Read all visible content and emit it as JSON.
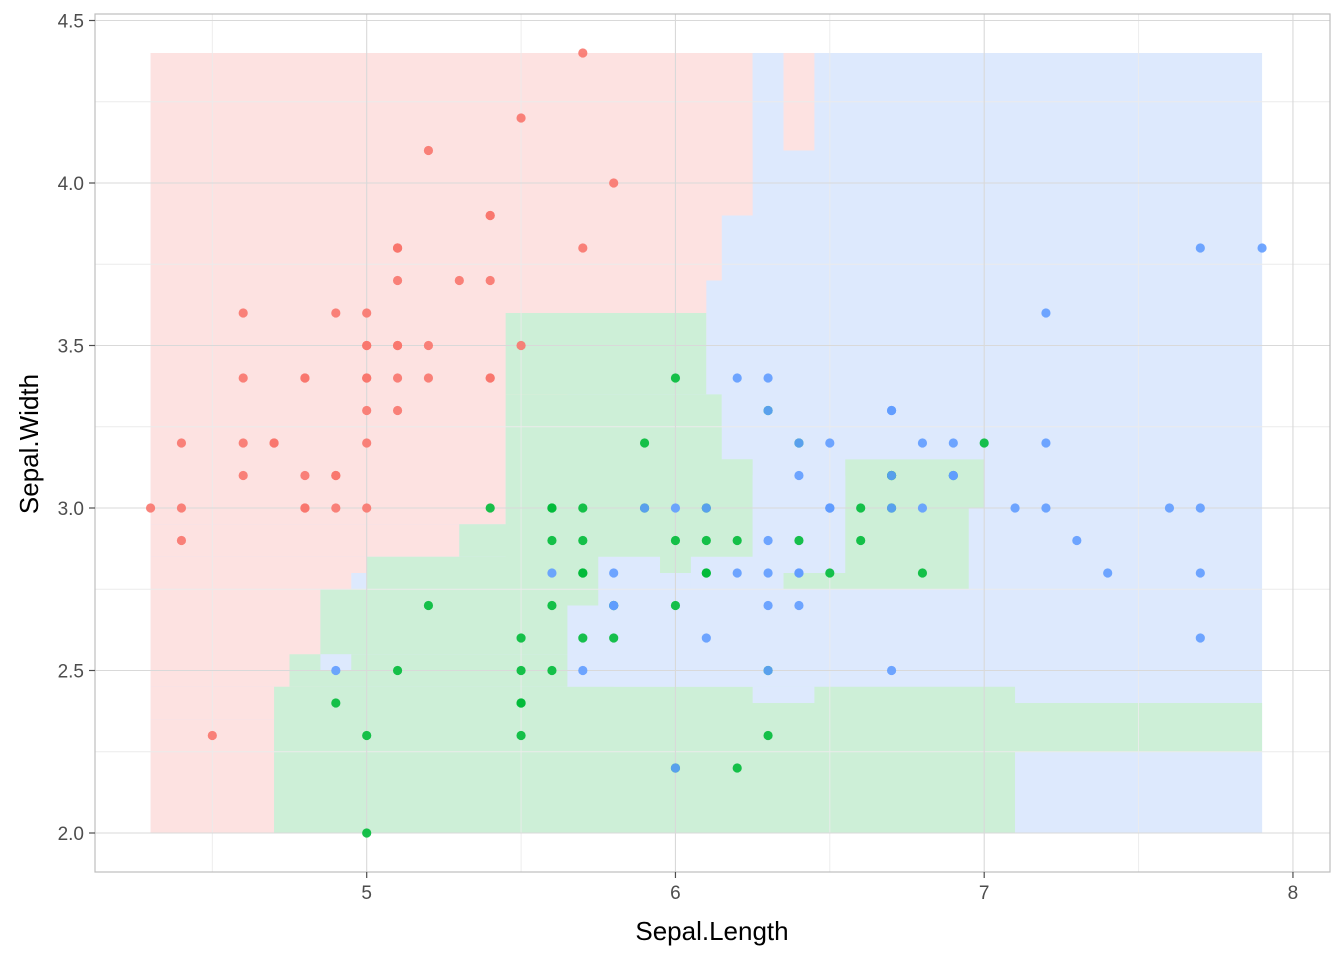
{
  "chart_data": {
    "type": "scatter",
    "title": "",
    "xlabel": "Sepal.Length",
    "ylabel": "Sepal.Width",
    "xlim": [
      4.12,
      8.12
    ],
    "ylim": [
      1.88,
      4.52
    ],
    "x_ticks": [
      5,
      6,
      7,
      8
    ],
    "x_tick_labels": [
      "5",
      "6",
      "7",
      "8"
    ],
    "y_ticks": [
      2.0,
      2.5,
      3.0,
      3.5,
      4.0,
      4.5
    ],
    "y_tick_labels": [
      "2.0",
      "2.5",
      "3.0",
      "3.5",
      "4.0",
      "4.5"
    ],
    "grid": true,
    "legend": "none",
    "colors": {
      "red_points": "#F8766D",
      "green_points": "#00BA38",
      "blue_points": "#619CFF",
      "red_region": "#FDE2E1",
      "green_region": "#CDEFD7",
      "blue_region": "#DDE9FD"
    },
    "decision_regions": [
      {
        "color": "blue_region",
        "rect": [
          4.3,
          7.9,
          2.0,
          4.4
        ]
      },
      {
        "color": "red_region",
        "rect": [
          4.3,
          6.25,
          4.1,
          4.4
        ]
      },
      {
        "color": "red_region",
        "rect": [
          6.35,
          6.45,
          4.1,
          4.4
        ]
      },
      {
        "color": "red_region",
        "rect": [
          4.3,
          6.35,
          3.9,
          4.1
        ]
      },
      {
        "color": "red_region",
        "rect": [
          4.3,
          6.15,
          3.7,
          3.9
        ]
      },
      {
        "color": "red_region",
        "rect": [
          4.3,
          6.1,
          3.5,
          3.7
        ]
      },
      {
        "color": "red_region",
        "rect": [
          4.3,
          5.85,
          3.4,
          3.5
        ]
      },
      {
        "color": "red_region",
        "rect": [
          4.3,
          5.65,
          3.3,
          3.4
        ]
      },
      {
        "color": "red_region",
        "rect": [
          4.3,
          5.45,
          2.95,
          3.3
        ]
      },
      {
        "color": "red_region",
        "rect": [
          4.3,
          5.3,
          2.85,
          2.95
        ]
      },
      {
        "color": "red_region",
        "rect": [
          4.3,
          5.0,
          2.8,
          2.85
        ]
      },
      {
        "color": "red_region",
        "rect": [
          4.3,
          4.95,
          2.75,
          2.8
        ]
      },
      {
        "color": "red_region",
        "rect": [
          4.3,
          4.85,
          2.45,
          2.75
        ]
      },
      {
        "color": "red_region",
        "rect": [
          4.3,
          4.75,
          2.35,
          2.45
        ]
      },
      {
        "color": "red_region",
        "rect": [
          4.3,
          4.7,
          2.0,
          2.35
        ]
      },
      {
        "color": "green_region",
        "rect": [
          5.45,
          6.1,
          3.35,
          3.6
        ]
      },
      {
        "color": "green_region",
        "rect": [
          5.45,
          6.15,
          3.25,
          3.35
        ]
      },
      {
        "color": "green_region",
        "rect": [
          5.45,
          6.25,
          2.8,
          3.25
        ]
      },
      {
        "color": "green_region",
        "rect": [
          5.3,
          6.25,
          2.85,
          2.95
        ]
      },
      {
        "color": "green_region",
        "rect": [
          5.0,
          5.8,
          2.75,
          2.85
        ]
      },
      {
        "color": "green_region",
        "rect": [
          4.85,
          5.8,
          2.55,
          2.75
        ]
      },
      {
        "color": "green_region",
        "rect": [
          4.75,
          5.8,
          2.45,
          2.55
        ]
      },
      {
        "color": "green_region",
        "rect": [
          4.7,
          7.1,
          2.0,
          2.45
        ]
      },
      {
        "color": "green_region",
        "rect": [
          6.55,
          7.0,
          3.0,
          3.15
        ]
      },
      {
        "color": "green_region",
        "rect": [
          6.35,
          6.95,
          2.75,
          3.0
        ]
      },
      {
        "color": "green_region",
        "rect": [
          7.0,
          7.9,
          2.25,
          2.4
        ]
      },
      {
        "color": "blue_region",
        "rect": [
          6.25,
          6.35,
          4.1,
          4.4
        ]
      },
      {
        "color": "blue_region",
        "rect": [
          6.25,
          7.9,
          3.6,
          4.1
        ]
      },
      {
        "color": "blue_region",
        "rect": [
          6.1,
          7.9,
          3.35,
          3.6
        ]
      },
      {
        "color": "blue_region",
        "rect": [
          6.15,
          7.9,
          3.15,
          3.35
        ]
      },
      {
        "color": "blue_region",
        "rect": [
          6.25,
          6.55,
          2.8,
          3.1
        ]
      },
      {
        "color": "blue_region",
        "rect": [
          5.75,
          5.95,
          2.7,
          2.85
        ]
      },
      {
        "color": "blue_region",
        "rect": [
          6.05,
          6.35,
          2.75,
          2.85
        ]
      },
      {
        "color": "blue_region",
        "rect": [
          5.65,
          6.45,
          2.45,
          2.7
        ]
      },
      {
        "color": "blue_region",
        "rect": [
          4.85,
          4.95,
          2.5,
          2.55
        ]
      },
      {
        "color": "blue_region",
        "rect": [
          6.25,
          6.45,
          2.4,
          2.45
        ]
      },
      {
        "color": "blue_region",
        "rect": [
          7.1,
          7.9,
          2.0,
          2.25
        ]
      }
    ],
    "series": [
      {
        "color": "red_points",
        "points": [
          [
            5.1,
            3.5
          ],
          [
            4.9,
            3.0
          ],
          [
            4.7,
            3.2
          ],
          [
            4.6,
            3.1
          ],
          [
            5.0,
            3.6
          ],
          [
            5.4,
            3.9
          ],
          [
            4.6,
            3.4
          ],
          [
            5.0,
            3.4
          ],
          [
            4.4,
            2.9
          ],
          [
            4.9,
            3.1
          ],
          [
            5.4,
            3.7
          ],
          [
            4.8,
            3.4
          ],
          [
            4.8,
            3.0
          ],
          [
            4.3,
            3.0
          ],
          [
            5.8,
            4.0
          ],
          [
            5.7,
            4.4
          ],
          [
            5.4,
            3.9
          ],
          [
            5.1,
            3.5
          ],
          [
            5.7,
            3.8
          ],
          [
            5.1,
            3.8
          ],
          [
            5.4,
            3.4
          ],
          [
            5.1,
            3.7
          ],
          [
            4.6,
            3.6
          ],
          [
            5.1,
            3.3
          ],
          [
            4.8,
            3.4
          ],
          [
            5.0,
            3.0
          ],
          [
            5.0,
            3.4
          ],
          [
            5.2,
            3.5
          ],
          [
            5.2,
            3.4
          ],
          [
            4.7,
            3.2
          ],
          [
            4.8,
            3.1
          ],
          [
            5.4,
            3.4
          ],
          [
            5.2,
            4.1
          ],
          [
            5.5,
            4.2
          ],
          [
            4.9,
            3.1
          ],
          [
            5.0,
            3.2
          ],
          [
            5.5,
            3.5
          ],
          [
            4.9,
            3.6
          ],
          [
            4.4,
            3.0
          ],
          [
            5.1,
            3.4
          ],
          [
            5.0,
            3.5
          ],
          [
            4.5,
            2.3
          ],
          [
            4.4,
            3.2
          ],
          [
            5.0,
            3.5
          ],
          [
            5.1,
            3.8
          ],
          [
            4.8,
            3.0
          ],
          [
            5.1,
            3.8
          ],
          [
            4.6,
            3.2
          ],
          [
            5.3,
            3.7
          ],
          [
            5.0,
            3.3
          ]
        ]
      },
      {
        "color": "green_points",
        "points": [
          [
            7.0,
            3.2
          ],
          [
            6.4,
            3.2
          ],
          [
            6.9,
            3.1
          ],
          [
            5.5,
            2.3
          ],
          [
            6.5,
            2.8
          ],
          [
            5.7,
            2.8
          ],
          [
            6.3,
            3.3
          ],
          [
            4.9,
            2.4
          ],
          [
            6.6,
            2.9
          ],
          [
            5.2,
            2.7
          ],
          [
            5.0,
            2.0
          ],
          [
            5.9,
            3.0
          ],
          [
            6.0,
            2.2
          ],
          [
            6.1,
            2.9
          ],
          [
            5.6,
            2.9
          ],
          [
            6.7,
            3.1
          ],
          [
            5.6,
            3.0
          ],
          [
            5.8,
            2.7
          ],
          [
            6.2,
            2.2
          ],
          [
            5.6,
            2.5
          ],
          [
            5.9,
            3.2
          ],
          [
            6.1,
            2.8
          ],
          [
            6.3,
            2.5
          ],
          [
            6.1,
            2.8
          ],
          [
            6.4,
            2.9
          ],
          [
            6.6,
            3.0
          ],
          [
            6.8,
            2.8
          ],
          [
            6.7,
            3.0
          ],
          [
            6.0,
            2.9
          ],
          [
            5.7,
            2.6
          ],
          [
            5.5,
            2.4
          ],
          [
            5.5,
            2.4
          ],
          [
            5.8,
            2.7
          ],
          [
            6.0,
            2.7
          ],
          [
            5.4,
            3.0
          ],
          [
            6.0,
            3.4
          ],
          [
            6.7,
            3.1
          ],
          [
            6.3,
            2.3
          ],
          [
            5.6,
            3.0
          ],
          [
            5.5,
            2.5
          ],
          [
            5.5,
            2.6
          ],
          [
            6.1,
            3.0
          ],
          [
            5.8,
            2.6
          ],
          [
            5.0,
            2.3
          ],
          [
            5.6,
            2.7
          ],
          [
            5.7,
            3.0
          ],
          [
            5.7,
            2.9
          ],
          [
            6.2,
            2.9
          ],
          [
            5.1,
            2.5
          ],
          [
            5.7,
            2.8
          ]
        ]
      },
      {
        "color": "blue_points",
        "points": [
          [
            6.3,
            3.3
          ],
          [
            5.8,
            2.7
          ],
          [
            7.1,
            3.0
          ],
          [
            6.3,
            2.9
          ],
          [
            6.5,
            3.0
          ],
          [
            7.6,
            3.0
          ],
          [
            4.9,
            2.5
          ],
          [
            7.3,
            2.9
          ],
          [
            6.7,
            2.5
          ],
          [
            7.2,
            3.6
          ],
          [
            6.5,
            3.2
          ],
          [
            6.4,
            2.7
          ],
          [
            6.8,
            3.0
          ],
          [
            5.7,
            2.5
          ],
          [
            5.8,
            2.8
          ],
          [
            6.4,
            3.2
          ],
          [
            6.5,
            3.0
          ],
          [
            7.7,
            3.8
          ],
          [
            7.7,
            2.6
          ],
          [
            6.0,
            2.2
          ],
          [
            6.9,
            3.2
          ],
          [
            5.6,
            2.8
          ],
          [
            7.7,
            2.8
          ],
          [
            6.3,
            2.7
          ],
          [
            6.7,
            3.3
          ],
          [
            7.2,
            3.2
          ],
          [
            6.2,
            2.8
          ],
          [
            6.1,
            3.0
          ],
          [
            6.4,
            2.8
          ],
          [
            7.2,
            3.0
          ],
          [
            7.4,
            2.8
          ],
          [
            7.9,
            3.8
          ],
          [
            6.4,
            2.8
          ],
          [
            6.3,
            2.8
          ],
          [
            6.1,
            2.6
          ],
          [
            7.7,
            3.0
          ],
          [
            6.3,
            3.4
          ],
          [
            6.4,
            3.1
          ],
          [
            6.0,
            3.0
          ],
          [
            6.9,
            3.1
          ],
          [
            6.7,
            3.1
          ],
          [
            6.9,
            3.1
          ],
          [
            5.8,
            2.7
          ],
          [
            6.8,
            3.2
          ],
          [
            6.7,
            3.3
          ],
          [
            6.7,
            3.0
          ],
          [
            6.3,
            2.5
          ],
          [
            6.5,
            3.0
          ],
          [
            6.2,
            3.4
          ],
          [
            5.9,
            3.0
          ]
        ]
      }
    ]
  }
}
